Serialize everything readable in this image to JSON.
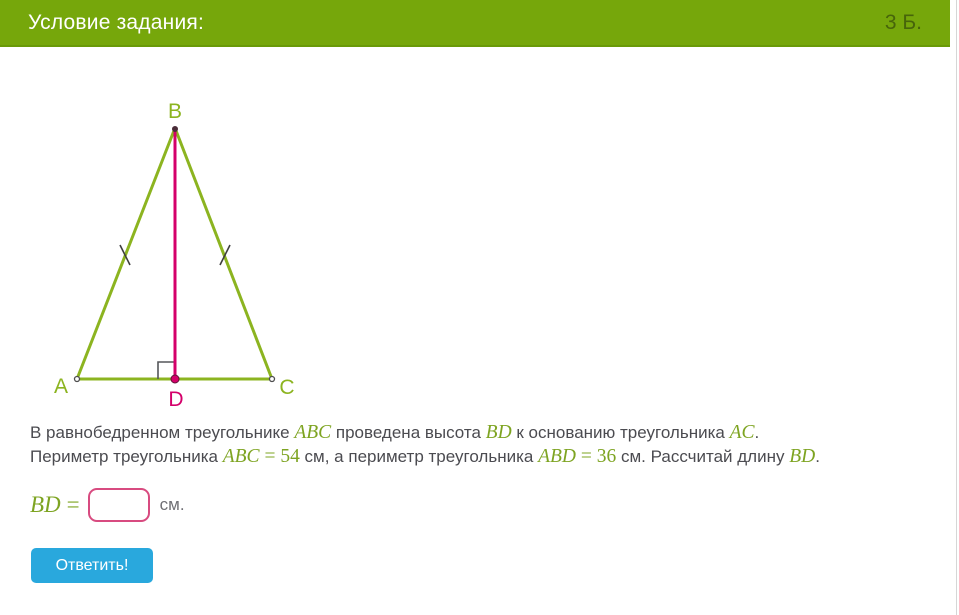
{
  "header": {
    "title": "Условие задания:",
    "points": "3 Б."
  },
  "figure": {
    "labels": {
      "A": "A",
      "B": "B",
      "C": "C",
      "D": "D"
    }
  },
  "problem": {
    "line1": [
      {
        "k": "text",
        "t": "В равнобедренном треугольнике "
      },
      {
        "k": "var",
        "t": "ABC"
      },
      {
        "k": "text",
        "t": " проведена высота "
      },
      {
        "k": "var",
        "t": "BD"
      },
      {
        "k": "text",
        "t": " к основанию треугольника "
      },
      {
        "k": "var",
        "t": "AC"
      },
      {
        "k": "text",
        "t": "."
      }
    ],
    "line2": [
      {
        "k": "text",
        "t": "Периметр треугольника "
      },
      {
        "k": "var",
        "t": "ABC"
      },
      {
        "k": "rel",
        "t": "="
      },
      {
        "k": "num",
        "t": "54"
      },
      {
        "k": "text",
        "t": " см, а периметр треугольника "
      },
      {
        "k": "var",
        "t": "ABD"
      },
      {
        "k": "rel",
        "t": "="
      },
      {
        "k": "num",
        "t": "36"
      },
      {
        "k": "text",
        "t": " см. Рассчитай длину "
      },
      {
        "k": "var",
        "t": "BD"
      },
      {
        "k": "text",
        "t": "."
      }
    ]
  },
  "answer": {
    "lhs": "BD",
    "rel": "=",
    "value": "",
    "unit": "см."
  },
  "button": {
    "label": "Ответить!"
  },
  "colors": {
    "header_green": "#76a70b",
    "header_points": "#47650a",
    "line_green": "#8cb420",
    "math_green": "#7ea422",
    "magenta": "#d4006a",
    "input_border": "#d84b80",
    "button_blue": "#29a8dd",
    "text_dark": "#4b4b50",
    "unit_gray": "#6f6f74"
  }
}
